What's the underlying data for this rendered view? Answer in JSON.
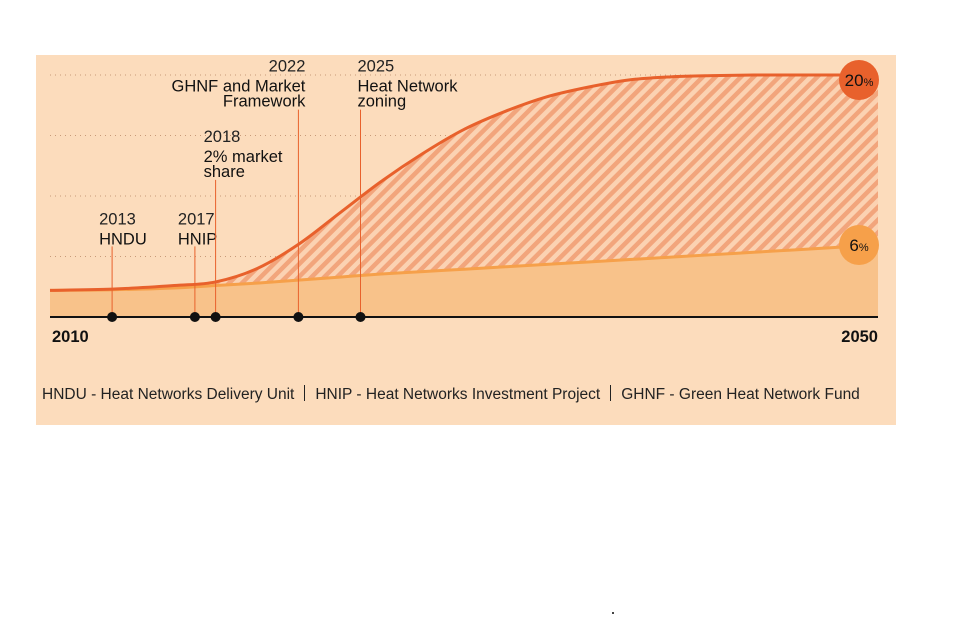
{
  "chart_data": {
    "type": "area",
    "x_range": [
      2010,
      2050
    ],
    "x_ticks": [
      {
        "value": 2010,
        "label": "2010"
      },
      {
        "value": 2050,
        "label": "2050"
      }
    ],
    "ylim": [
      0,
      25
    ],
    "grid": "dotted horizontal",
    "series": [
      {
        "x": [
          2010,
          2013,
          2016,
          2018,
          2020,
          2022,
          2024,
          2026,
          2028,
          2030,
          2032,
          2034,
          2036,
          2038,
          2040,
          2042,
          2044,
          2046,
          2048,
          2050
        ],
        "y": [
          2.2,
          2.3,
          2.6,
          2.9,
          4.0,
          6.0,
          8.6,
          11.2,
          13.5,
          15.5,
          17.0,
          18.2,
          19.0,
          19.6,
          19.85,
          19.95,
          20.0,
          20.0,
          20.0,
          20.0
        ],
        "end_label": "20",
        "end_unit": "%",
        "color": "#e8612c",
        "end_color": "#e8612c"
      },
      {
        "x": [
          2010,
          2013,
          2016,
          2018,
          2020,
          2022,
          2024,
          2026,
          2028,
          2030,
          2032,
          2034,
          2036,
          2038,
          2040,
          2042,
          2044,
          2046,
          2048,
          2050
        ],
        "y": [
          2.2,
          2.25,
          2.4,
          2.6,
          2.8,
          3.05,
          3.3,
          3.55,
          3.75,
          3.95,
          4.15,
          4.35,
          4.55,
          4.75,
          4.95,
          5.15,
          5.35,
          5.55,
          5.75,
          5.95
        ],
        "end_label": "6",
        "end_unit": "%",
        "color": "#f6a04a",
        "end_color": "#f6a04a"
      }
    ],
    "milestones": [
      {
        "x": 2013,
        "year": "2013",
        "label": [
          "HNDU"
        ],
        "top": 6,
        "align": "start"
      },
      {
        "x": 2017,
        "year": "2017",
        "label": [
          "HNIP"
        ],
        "top": 6,
        "align": "start"
      },
      {
        "x": 2018,
        "year": "2018",
        "label": [
          "2% market",
          "share"
        ],
        "top": 11.5,
        "align": "start"
      },
      {
        "x": 2022,
        "year": "2022",
        "label": [
          "GHNF and Market",
          "Framework"
        ],
        "top": 17.3,
        "align": "end"
      },
      {
        "x": 2025,
        "year": "2025",
        "label": [
          "Heat Network",
          "zoning"
        ],
        "top": 17.3,
        "align": "start"
      }
    ]
  },
  "legend": {
    "hndu": "HNDU - Heat Networks Delivery Unit",
    "hnip": "HNIP - Heat Networks Investment Project",
    "ghnf": "GHNF - Green Heat Network Fund"
  },
  "colors": {
    "panel_bg": "#fcdcbc",
    "low_fill": "#f8c28a",
    "hatch": "#f2a57c",
    "high_line": "#e8612c",
    "low_line": "#f6a04a",
    "axis": "#111111"
  }
}
